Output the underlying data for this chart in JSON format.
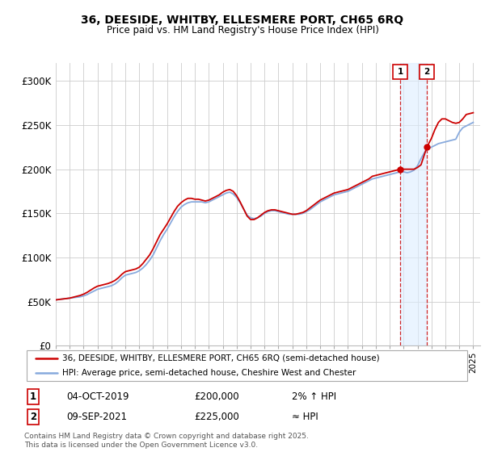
{
  "title": "36, DEESIDE, WHITBY, ELLESMERE PORT, CH65 6RQ",
  "subtitle": "Price paid vs. HM Land Registry's House Price Index (HPI)",
  "ylim": [
    0,
    320000
  ],
  "yticks": [
    0,
    50000,
    100000,
    150000,
    200000,
    250000,
    300000
  ],
  "ytick_labels": [
    "£0",
    "£50K",
    "£100K",
    "£150K",
    "£200K",
    "£250K",
    "£300K"
  ],
  "grid_color": "#cccccc",
  "line1_color": "#cc0000",
  "line2_color": "#88aadd",
  "shade_color": "#ddeeff",
  "annotation1": {
    "label": "1",
    "date": "04-OCT-2019",
    "price": "£200,000",
    "note": "2% ↑ HPI"
  },
  "annotation2": {
    "label": "2",
    "date": "09-SEP-2021",
    "price": "£225,000",
    "note": "≈ HPI"
  },
  "legend1": "36, DEESIDE, WHITBY, ELLESMERE PORT, CH65 6RQ (semi-detached house)",
  "legend2": "HPI: Average price, semi-detached house, Cheshire West and Chester",
  "footer": "Contains HM Land Registry data © Crown copyright and database right 2025.\nThis data is licensed under the Open Government Licence v3.0.",
  "hpi_data": {
    "years": [
      1995.0,
      1995.25,
      1995.5,
      1995.75,
      1996.0,
      1996.25,
      1996.5,
      1996.75,
      1997.0,
      1997.25,
      1997.5,
      1997.75,
      1998.0,
      1998.25,
      1998.5,
      1998.75,
      1999.0,
      1999.25,
      1999.5,
      1999.75,
      2000.0,
      2000.25,
      2000.5,
      2000.75,
      2001.0,
      2001.25,
      2001.5,
      2001.75,
      2002.0,
      2002.25,
      2002.5,
      2002.75,
      2003.0,
      2003.25,
      2003.5,
      2003.75,
      2004.0,
      2004.25,
      2004.5,
      2004.75,
      2005.0,
      2005.25,
      2005.5,
      2005.75,
      2006.0,
      2006.25,
      2006.5,
      2006.75,
      2007.0,
      2007.25,
      2007.5,
      2007.75,
      2008.0,
      2008.25,
      2008.5,
      2008.75,
      2009.0,
      2009.25,
      2009.5,
      2009.75,
      2010.0,
      2010.25,
      2010.5,
      2010.75,
      2011.0,
      2011.25,
      2011.5,
      2011.75,
      2012.0,
      2012.25,
      2012.5,
      2012.75,
      2013.0,
      2013.25,
      2013.5,
      2013.75,
      2014.0,
      2014.25,
      2014.5,
      2014.75,
      2015.0,
      2015.25,
      2015.5,
      2015.75,
      2016.0,
      2016.25,
      2016.5,
      2016.75,
      2017.0,
      2017.25,
      2017.5,
      2017.75,
      2018.0,
      2018.25,
      2018.5,
      2018.75,
      2019.0,
      2019.25,
      2019.5,
      2019.75,
      2020.0,
      2020.25,
      2020.5,
      2020.75,
      2021.0,
      2021.25,
      2021.5,
      2021.75,
      2022.0,
      2022.25,
      2022.5,
      2022.75,
      2023.0,
      2023.25,
      2023.5,
      2023.75,
      2024.0,
      2024.25,
      2024.5,
      2024.75,
      2025.0
    ],
    "values": [
      52000,
      52500,
      53000,
      53500,
      54000,
      54500,
      55000,
      55500,
      56500,
      58000,
      60000,
      62000,
      64000,
      65000,
      66000,
      67000,
      68000,
      70000,
      73000,
      77000,
      80000,
      81000,
      82000,
      83000,
      85000,
      88000,
      92000,
      97000,
      103000,
      111000,
      119000,
      126000,
      132000,
      139000,
      146000,
      152000,
      157000,
      160000,
      162000,
      163000,
      163000,
      163000,
      163000,
      162000,
      163000,
      165000,
      167000,
      169000,
      171000,
      173000,
      174000,
      172000,
      168000,
      162000,
      155000,
      148000,
      145000,
      144000,
      145000,
      147000,
      150000,
      152000,
      153000,
      153000,
      152000,
      151000,
      150000,
      149000,
      149000,
      149000,
      149000,
      150000,
      152000,
      154000,
      157000,
      160000,
      163000,
      165000,
      167000,
      169000,
      171000,
      172000,
      173000,
      174000,
      175000,
      177000,
      179000,
      181000,
      183000,
      185000,
      187000,
      189000,
      190000,
      191000,
      192000,
      193000,
      194000,
      195000,
      196000,
      197000,
      197000,
      196000,
      197000,
      199000,
      204000,
      212000,
      219000,
      223000,
      225000,
      227000,
      229000,
      230000,
      231000,
      232000,
      233000,
      234000,
      242000,
      247000,
      249000,
      251000,
      253000
    ]
  },
  "price_data": {
    "years": [
      1995.0,
      1995.25,
      1995.5,
      1995.75,
      1996.0,
      1996.25,
      1996.5,
      1996.75,
      1997.0,
      1997.25,
      1997.5,
      1997.75,
      1998.0,
      1998.25,
      1998.5,
      1998.75,
      1999.0,
      1999.25,
      1999.5,
      1999.75,
      2000.0,
      2000.25,
      2000.5,
      2000.75,
      2001.0,
      2001.25,
      2001.5,
      2001.75,
      2002.0,
      2002.25,
      2002.5,
      2002.75,
      2003.0,
      2003.25,
      2003.5,
      2003.75,
      2004.0,
      2004.25,
      2004.5,
      2004.75,
      2005.0,
      2005.25,
      2005.5,
      2005.75,
      2006.0,
      2006.25,
      2006.5,
      2006.75,
      2007.0,
      2007.25,
      2007.5,
      2007.75,
      2008.0,
      2008.25,
      2008.5,
      2008.75,
      2009.0,
      2009.25,
      2009.5,
      2009.75,
      2010.0,
      2010.25,
      2010.5,
      2010.75,
      2011.0,
      2011.25,
      2011.5,
      2011.75,
      2012.0,
      2012.25,
      2012.5,
      2012.75,
      2013.0,
      2013.25,
      2013.5,
      2013.75,
      2014.0,
      2014.25,
      2014.5,
      2014.75,
      2015.0,
      2015.25,
      2015.5,
      2015.75,
      2016.0,
      2016.25,
      2016.5,
      2016.75,
      2017.0,
      2017.25,
      2017.5,
      2017.75,
      2018.0,
      2018.25,
      2018.5,
      2018.75,
      2019.0,
      2019.25,
      2019.5,
      2019.75,
      2020.25,
      2020.75,
      2021.0,
      2021.25,
      2021.67,
      2022.0,
      2022.25,
      2022.5,
      2022.75,
      2023.0,
      2023.25,
      2023.5,
      2023.75,
      2024.0,
      2024.25,
      2024.5,
      2024.75,
      2025.0
    ],
    "values": [
      52000,
      52500,
      53000,
      53500,
      54000,
      55000,
      56000,
      57000,
      58500,
      60500,
      63000,
      65500,
      67500,
      68500,
      69500,
      70500,
      72000,
      74000,
      77000,
      81000,
      84000,
      85000,
      86000,
      87000,
      89000,
      93000,
      98000,
      103000,
      110000,
      118000,
      126000,
      132000,
      138000,
      145000,
      152000,
      158000,
      162000,
      165000,
      167000,
      167000,
      166000,
      166000,
      165000,
      164000,
      165000,
      167000,
      169000,
      171000,
      174000,
      176000,
      177000,
      175000,
      170000,
      163000,
      155000,
      147000,
      143000,
      143000,
      145000,
      148000,
      151000,
      153000,
      154000,
      154000,
      153000,
      152000,
      151000,
      150000,
      149000,
      149000,
      150000,
      151000,
      153000,
      156000,
      159000,
      162000,
      165000,
      167000,
      169000,
      171000,
      173000,
      174000,
      175000,
      176000,
      177000,
      179000,
      181000,
      183000,
      185000,
      187000,
      189000,
      192000,
      193000,
      194000,
      195000,
      196000,
      197000,
      198000,
      199000,
      200000,
      200000,
      200000,
      202000,
      205000,
      225000,
      235000,
      245000,
      253000,
      257000,
      257000,
      255000,
      253000,
      252000,
      253000,
      257000,
      262000,
      263000,
      264000
    ]
  },
  "marker1_x": 2019.75,
  "marker1_y": 200000,
  "marker2_x": 2021.67,
  "marker2_y": 225000,
  "xmin": 1995,
  "xmax": 2025.5
}
